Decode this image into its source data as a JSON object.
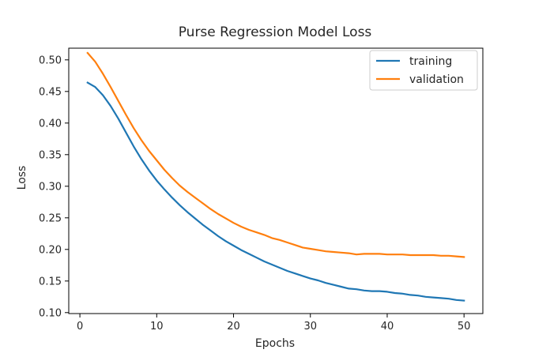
{
  "chart_data": {
    "type": "line",
    "title": "Purse Regression Model Loss",
    "xlabel": "Epochs",
    "ylabel": "Loss",
    "xlim": [
      -1.45,
      52.45
    ],
    "ylim": [
      0.0985,
      0.5185
    ],
    "xticks": [
      0,
      10,
      20,
      30,
      40,
      50
    ],
    "yticks": [
      0.1,
      0.15,
      0.2,
      0.25,
      0.3,
      0.35,
      0.4,
      0.45,
      0.5
    ],
    "xtick_labels": [
      "0",
      "10",
      "20",
      "30",
      "40",
      "50"
    ],
    "ytick_labels": [
      "0.10",
      "0.15",
      "0.20",
      "0.25",
      "0.30",
      "0.35",
      "0.40",
      "0.45",
      "0.50"
    ],
    "grid": false,
    "legend_position": "top-right",
    "x": [
      1,
      2,
      3,
      4,
      5,
      6,
      7,
      8,
      9,
      10,
      11,
      12,
      13,
      14,
      15,
      16,
      17,
      18,
      19,
      20,
      21,
      22,
      23,
      24,
      25,
      26,
      27,
      28,
      29,
      30,
      31,
      32,
      33,
      34,
      35,
      36,
      37,
      38,
      39,
      40,
      41,
      42,
      43,
      44,
      45,
      46,
      47,
      48,
      49,
      50
    ],
    "series": [
      {
        "name": "training",
        "color": "#1f77b4",
        "values": [
          0.464,
          0.457,
          0.444,
          0.427,
          0.407,
          0.385,
          0.363,
          0.343,
          0.325,
          0.309,
          0.295,
          0.282,
          0.27,
          0.259,
          0.249,
          0.239,
          0.23,
          0.221,
          0.213,
          0.206,
          0.199,
          0.193,
          0.187,
          0.181,
          0.176,
          0.171,
          0.166,
          0.162,
          0.158,
          0.154,
          0.151,
          0.147,
          0.144,
          0.141,
          0.138,
          0.137,
          0.135,
          0.134,
          0.134,
          0.133,
          0.131,
          0.13,
          0.128,
          0.127,
          0.125,
          0.124,
          0.123,
          0.122,
          0.12,
          0.119
        ]
      },
      {
        "name": "validation",
        "color": "#ff7f0e",
        "values": [
          0.511,
          0.497,
          0.478,
          0.457,
          0.435,
          0.413,
          0.392,
          0.373,
          0.356,
          0.341,
          0.326,
          0.313,
          0.301,
          0.291,
          0.282,
          0.273,
          0.264,
          0.256,
          0.249,
          0.242,
          0.236,
          0.231,
          0.227,
          0.223,
          0.218,
          0.215,
          0.211,
          0.207,
          0.203,
          0.201,
          0.199,
          0.197,
          0.196,
          0.195,
          0.194,
          0.192,
          0.193,
          0.193,
          0.193,
          0.192,
          0.192,
          0.192,
          0.191,
          0.191,
          0.191,
          0.191,
          0.19,
          0.19,
          0.189,
          0.188
        ]
      }
    ]
  }
}
